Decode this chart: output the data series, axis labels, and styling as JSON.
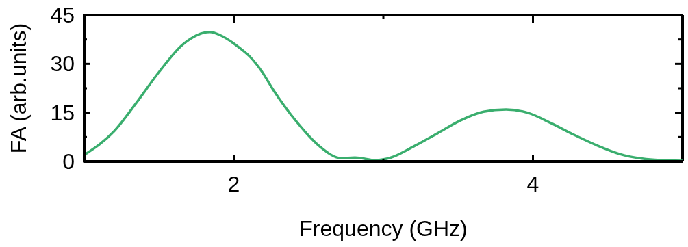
{
  "chart_data": {
    "type": "line",
    "xlabel": "Frequency (GHz)",
    "ylabel": "FA (arb.units)",
    "xlim": [
      1,
      5
    ],
    "ylim": [
      0,
      45
    ],
    "xticks": [
      2,
      {
        "value": 3,
        "label": null
      },
      4
    ],
    "yticks": [
      0,
      {
        "value": 7.5,
        "label": null
      },
      15,
      {
        "value": 22.5,
        "label": null
      },
      30,
      {
        "value": 37.5,
        "label": null
      },
      45
    ],
    "marker": "none",
    "line_style": "solid",
    "series": [
      {
        "color": "#3aae6e",
        "x": [
          1.0,
          1.2,
          1.35,
          1.5,
          1.66,
          1.84,
          1.91,
          1.99,
          2.05,
          2.11,
          2.19,
          2.26,
          2.42,
          2.57,
          2.72,
          2.81,
          2.95,
          3.05,
          3.21,
          3.36,
          3.51,
          3.67,
          3.82,
          3.97,
          4.12,
          4.27,
          4.42,
          4.58,
          4.73,
          4.85,
          5.0
        ],
        "values": [
          2.0,
          9.3,
          18.1,
          27.5,
          36.0,
          39.8,
          38.8,
          36.6,
          34.5,
          32.1,
          27.5,
          22.3,
          12.2,
          4.8,
          1.0,
          1.2,
          0.4,
          1.2,
          4.8,
          8.6,
          12.5,
          15.3,
          16.0,
          14.9,
          11.8,
          8.3,
          5.1,
          2.3,
          0.9,
          0.4,
          0.2
        ]
      }
    ]
  }
}
